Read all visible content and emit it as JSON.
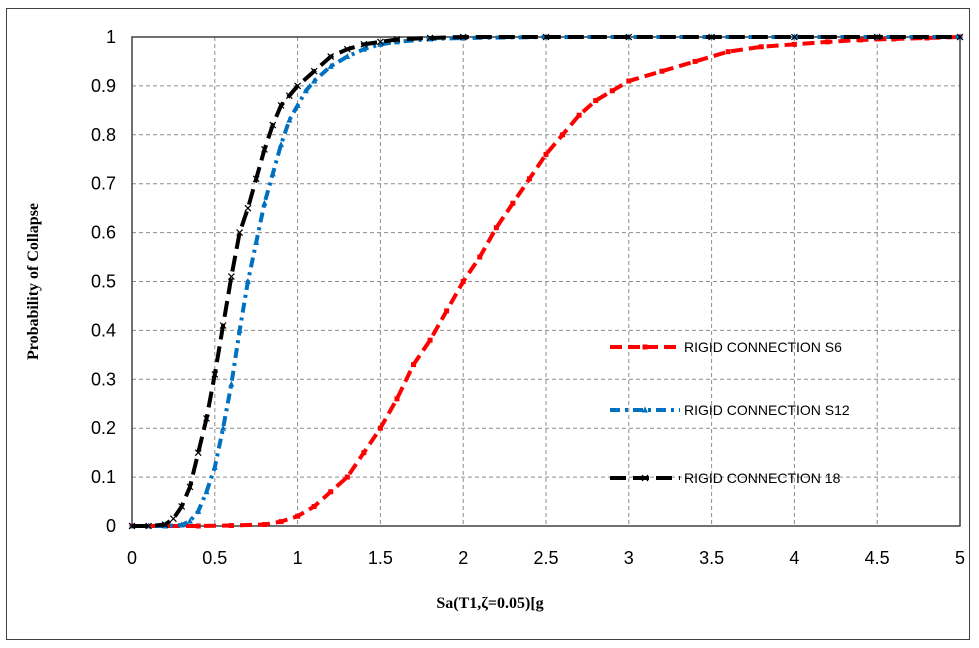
{
  "chart_data": {
    "type": "line",
    "title": "",
    "xlabel": "Sa(T1,ζ=0.05)[g",
    "ylabel": "Probability of Collapse",
    "xlim": [
      0,
      5
    ],
    "ylim": [
      0,
      1
    ],
    "grid": true,
    "legend_position": "right",
    "x_ticks": [
      "0",
      "0.5",
      "1",
      "1.5",
      "2",
      "2.5",
      "3",
      "3.5",
      "4",
      "4.5",
      "5"
    ],
    "y_ticks": [
      "0",
      "0.1",
      "0.2",
      "0.3",
      "0.4",
      "0.5",
      "0.6",
      "0.7",
      "0.8",
      "0.9",
      "1"
    ],
    "series": [
      {
        "name": "RIGID CONNECTION S6",
        "color": "#ff0000",
        "marker": "square",
        "x": [
          0,
          0.2,
          0.4,
          0.6,
          0.8,
          0.9,
          1.0,
          1.1,
          1.2,
          1.3,
          1.4,
          1.5,
          1.6,
          1.7,
          1.8,
          1.9,
          2.0,
          2.1,
          2.2,
          2.3,
          2.4,
          2.5,
          2.6,
          2.7,
          2.8,
          2.9,
          3.0,
          3.2,
          3.4,
          3.6,
          3.8,
          4.0,
          4.2,
          4.4,
          4.6,
          4.8,
          5.0
        ],
        "y": [
          0,
          0,
          0,
          0.001,
          0.003,
          0.009,
          0.02,
          0.04,
          0.07,
          0.1,
          0.15,
          0.2,
          0.26,
          0.33,
          0.38,
          0.44,
          0.5,
          0.55,
          0.61,
          0.66,
          0.71,
          0.76,
          0.8,
          0.84,
          0.87,
          0.89,
          0.91,
          0.93,
          0.95,
          0.97,
          0.98,
          0.985,
          0.99,
          0.994,
          0.996,
          0.998,
          1.0
        ]
      },
      {
        "name": "RIGID CONNECTION S12",
        "color": "#0070c0",
        "marker": "triangle",
        "x": [
          0,
          0.1,
          0.2,
          0.3,
          0.35,
          0.4,
          0.45,
          0.5,
          0.55,
          0.6,
          0.65,
          0.7,
          0.75,
          0.8,
          0.85,
          0.9,
          0.95,
          1.0,
          1.05,
          1.1,
          1.2,
          1.3,
          1.4,
          1.5,
          1.6,
          1.8,
          2.0,
          2.5,
          3.0,
          3.5,
          4.0,
          4.5,
          5.0
        ],
        "y": [
          0,
          0,
          0,
          0.002,
          0.01,
          0.03,
          0.07,
          0.12,
          0.2,
          0.29,
          0.4,
          0.5,
          0.58,
          0.66,
          0.72,
          0.78,
          0.83,
          0.86,
          0.89,
          0.91,
          0.94,
          0.96,
          0.975,
          0.985,
          0.99,
          0.996,
          0.998,
          1.0,
          1.0,
          1.0,
          1.0,
          1.0,
          1.0
        ]
      },
      {
        "name": "RIGID CONNECTION 18",
        "color": "#000000",
        "marker": "x",
        "x": [
          0,
          0.1,
          0.2,
          0.25,
          0.3,
          0.35,
          0.4,
          0.45,
          0.5,
          0.55,
          0.6,
          0.65,
          0.7,
          0.75,
          0.8,
          0.85,
          0.9,
          0.95,
          1.0,
          1.1,
          1.2,
          1.3,
          1.4,
          1.5,
          1.6,
          1.8,
          2.0,
          2.5,
          3.0,
          3.5,
          4.0,
          4.5,
          5.0
        ],
        "y": [
          0,
          0,
          0.003,
          0.015,
          0.04,
          0.08,
          0.15,
          0.22,
          0.31,
          0.41,
          0.51,
          0.6,
          0.65,
          0.71,
          0.77,
          0.82,
          0.86,
          0.88,
          0.9,
          0.93,
          0.96,
          0.975,
          0.985,
          0.99,
          0.995,
          0.998,
          1.0,
          1.0,
          1.0,
          1.0,
          1.0,
          1.0,
          1.0
        ]
      }
    ]
  }
}
